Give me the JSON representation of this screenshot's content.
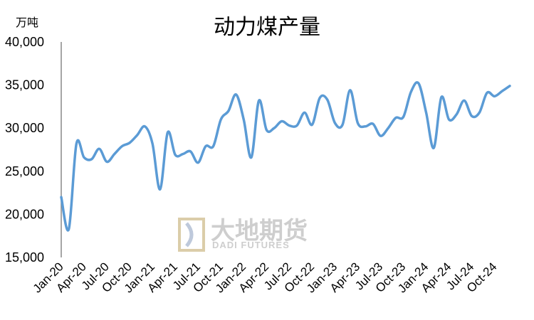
{
  "chart_data": {
    "type": "line",
    "title": "动力煤产量",
    "unit_label": "万吨",
    "ylim": [
      15000,
      40000
    ],
    "yticks": [
      "15,000",
      "20,000",
      "25,000",
      "30,000",
      "35,000",
      "40,000"
    ],
    "ytick_values": [
      15000,
      20000,
      25000,
      30000,
      35000,
      40000
    ],
    "xtick_labels": [
      "Jan-20",
      "Apr-20",
      "Jul-20",
      "Oct-20",
      "Jan-21",
      "Apr-21",
      "Jul-21",
      "Oct-21",
      "Jan-22",
      "Apr-22",
      "Jul-22",
      "Oct-22",
      "Jan-23",
      "Apr-23",
      "Jul-23",
      "Oct-23",
      "Jan-24",
      "Apr-24",
      "Jul-24",
      "Oct-24"
    ],
    "line_color": "#5B9BD5",
    "grid": false,
    "legend": "none",
    "series": [
      {
        "values": [
          22000,
          18300,
          28200,
          26600,
          26400,
          27600,
          26100,
          27000,
          27900,
          28300,
          29200,
          30200,
          28200,
          22900,
          29500,
          26900,
          27000,
          27300,
          26000,
          27900,
          27900,
          31000,
          32000,
          33900,
          31000,
          26600,
          33200,
          29800,
          30000,
          30800,
          30300,
          30300,
          31800,
          30400,
          33500,
          33300,
          30600,
          30400,
          34400,
          30600,
          30200,
          30500,
          29100,
          30000,
          31200,
          31300,
          34200,
          35200,
          31800,
          27700,
          33600,
          31000,
          31600,
          33200,
          31400,
          31800,
          34100,
          33700,
          34300,
          34900
        ]
      }
    ]
  },
  "watermark": {
    "cn": "大地期货",
    "en": "DADI FUTURES"
  }
}
